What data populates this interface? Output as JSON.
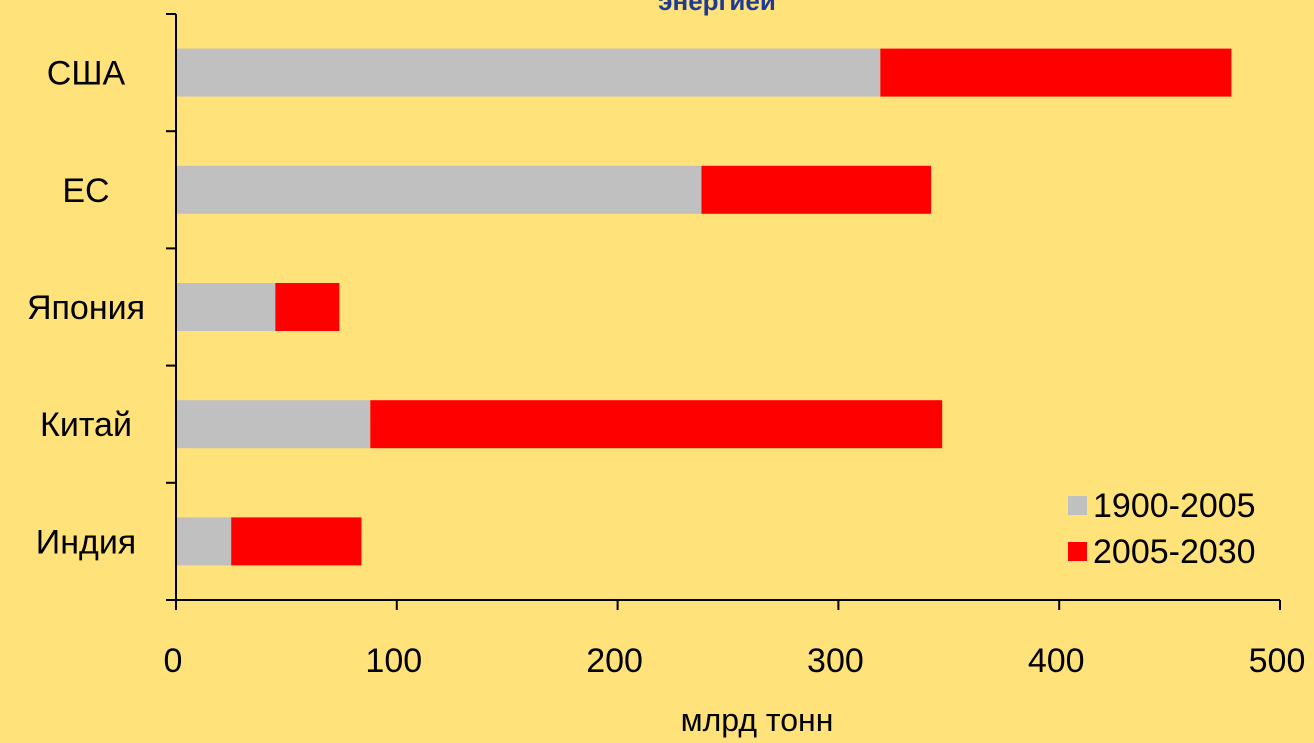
{
  "chart_data": {
    "type": "bar",
    "orientation": "horizontal",
    "stacked": true,
    "title": "энергией",
    "xlabel": "млрд тонн",
    "ylabel": "",
    "xlim": [
      0,
      500
    ],
    "x_ticks": [
      0,
      100,
      200,
      300,
      400,
      500
    ],
    "grid": false,
    "legend_position": "bottom-right",
    "categories": [
      "США",
      "ЕС",
      "Япония",
      "Китай",
      "Индия"
    ],
    "series": [
      {
        "name": "1900-2005",
        "color": "#C0C0C0",
        "values": [
          319,
          238,
          45,
          88,
          25
        ]
      },
      {
        "name": "2005-2030",
        "color": "#FF0000",
        "values": [
          159,
          104,
          29,
          259,
          59
        ]
      }
    ]
  }
}
